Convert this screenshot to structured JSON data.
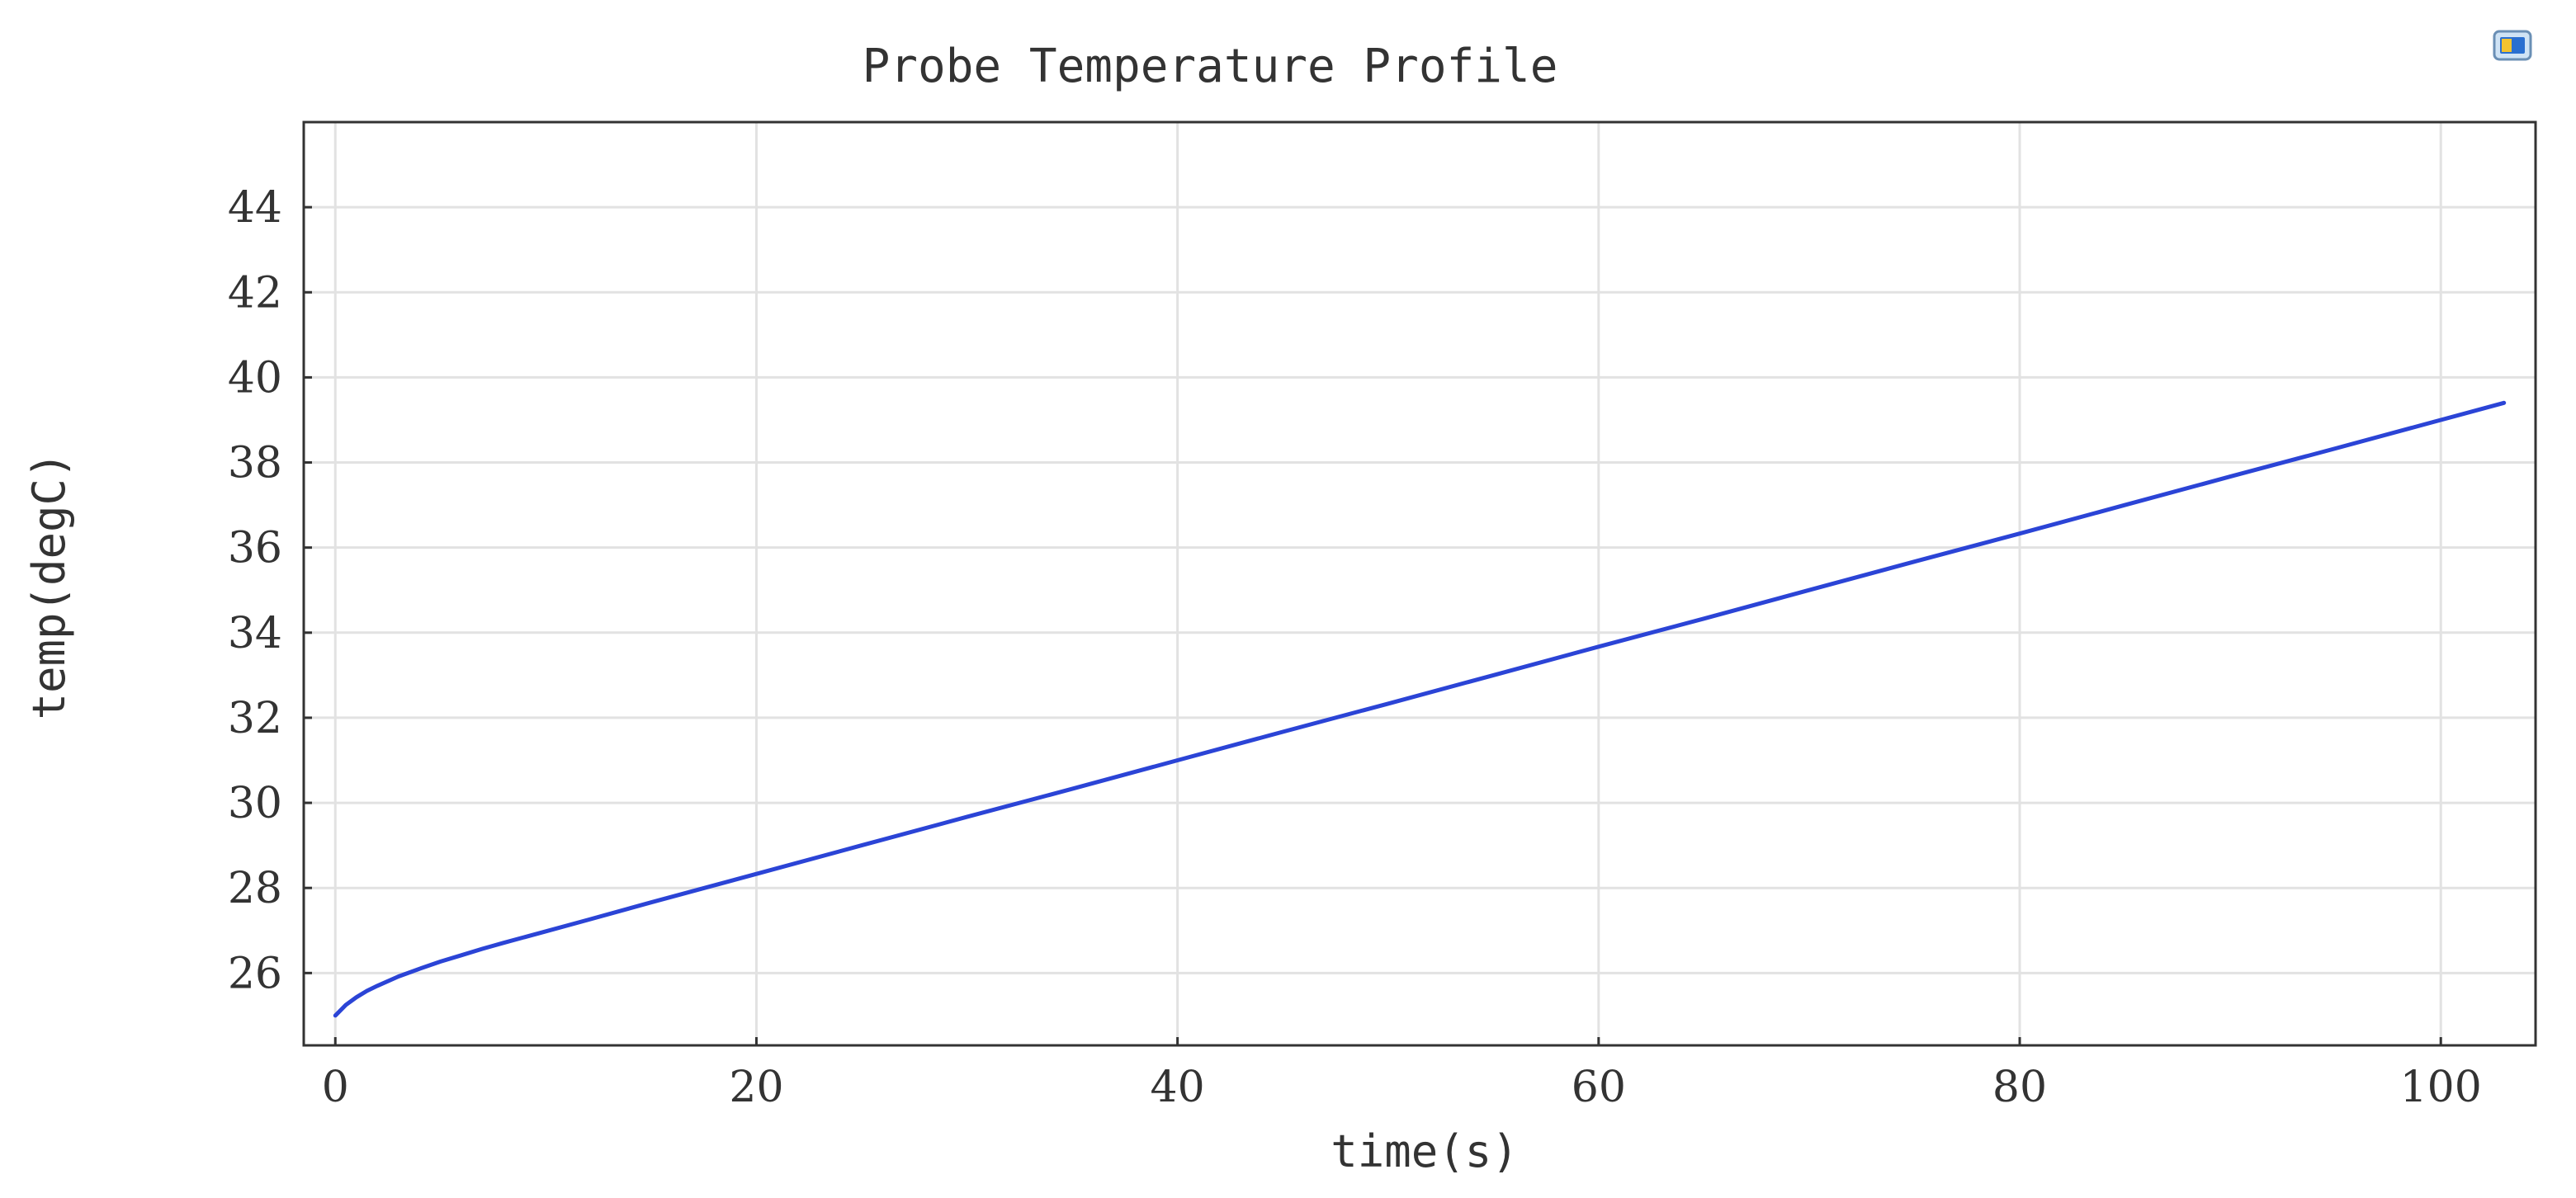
{
  "chart_data": {
    "type": "line",
    "title": "Probe Temperature Profile",
    "xlabel": "time(s)",
    "ylabel": "temp(degC)",
    "xlim": [
      -1.5,
      104.5
    ],
    "ylim": [
      24.3,
      46.0
    ],
    "x_ticks": [
      "0",
      "20",
      "40",
      "60",
      "80",
      "100"
    ],
    "y_ticks": [
      "26",
      "28",
      "30",
      "32",
      "34",
      "36",
      "38",
      "40",
      "42",
      "44"
    ],
    "grid": true,
    "series": [
      {
        "color": "#2b44d6",
        "x": [
          0,
          0.5,
          1,
          1.5,
          2,
          3,
          4,
          5,
          6,
          7,
          8,
          10,
          12,
          15,
          20,
          25,
          30,
          35,
          40,
          45,
          50,
          55,
          60,
          65,
          70,
          75,
          80,
          85,
          90,
          95,
          100,
          103
        ],
        "y": [
          25.0,
          25.25,
          25.43,
          25.58,
          25.7,
          25.92,
          26.1,
          26.27,
          26.42,
          26.57,
          26.71,
          26.98,
          27.25,
          27.66,
          28.33,
          29.0,
          29.67,
          30.33,
          31.0,
          31.67,
          32.33,
          33.0,
          33.67,
          34.33,
          35.0,
          35.67,
          36.33,
          37.0,
          37.67,
          38.33,
          39.0,
          39.4
        ]
      }
    ]
  },
  "toolbar": {
    "export_icon": "export-image-icon"
  }
}
